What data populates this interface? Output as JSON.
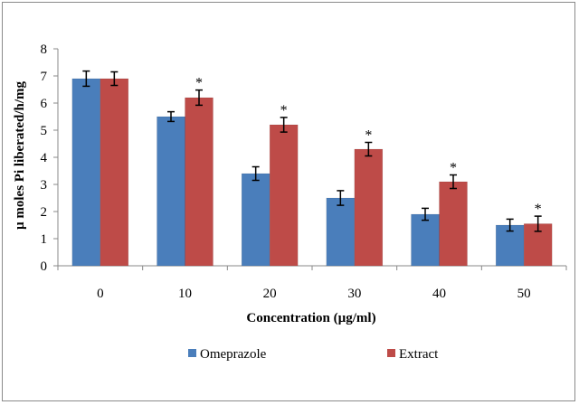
{
  "chart_data": {
    "type": "bar",
    "categories": [
      "0",
      "10",
      "20",
      "30",
      "40",
      "50"
    ],
    "series": [
      {
        "name": "Omeprazole",
        "values": [
          6.9,
          5.5,
          3.4,
          2.5,
          1.9,
          1.5
        ],
        "errors": [
          0.28,
          0.18,
          0.25,
          0.27,
          0.22,
          0.22
        ],
        "significant": [
          false,
          false,
          false,
          false,
          false,
          false
        ],
        "color": "#4a7ebb"
      },
      {
        "name": "Extract",
        "values": [
          6.9,
          6.2,
          5.2,
          4.3,
          3.1,
          1.55
        ],
        "errors": [
          0.25,
          0.28,
          0.27,
          0.25,
          0.25,
          0.28
        ],
        "significant": [
          false,
          true,
          true,
          true,
          true,
          true
        ],
        "color": "#be4b48"
      }
    ],
    "significance_marker": "*",
    "xlabel": "Concentration (µg/ml)",
    "ylabel": "µ moles Pi liberated/h/mg",
    "ylim": [
      0,
      8
    ],
    "yticks": [
      0,
      1,
      2,
      3,
      4,
      5,
      6,
      7,
      8
    ],
    "grid": false,
    "legend_position": "bottom"
  }
}
